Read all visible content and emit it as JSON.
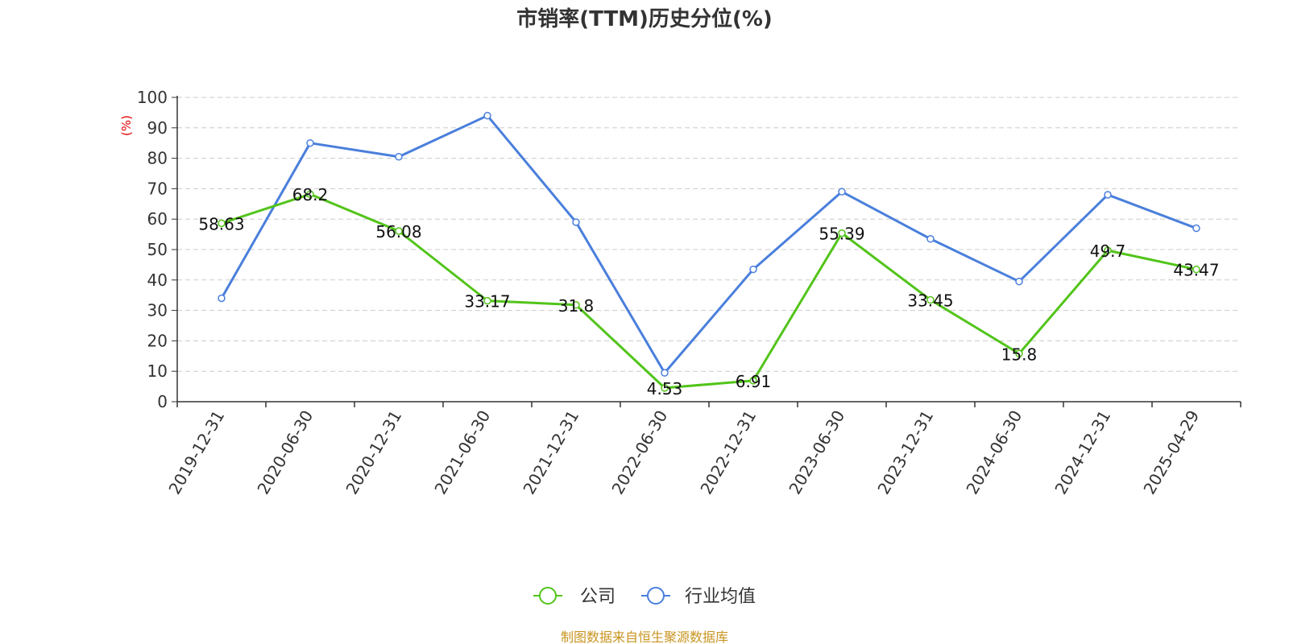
{
  "chart_data": {
    "type": "line",
    "title": "市销率(TTM)历史分位(%)",
    "ylabel": "(%)",
    "xlabel": "",
    "ylim": [
      0,
      100
    ],
    "yticks": [
      "0",
      "10",
      "20",
      "30",
      "40",
      "50",
      "60",
      "70",
      "80",
      "90",
      "100"
    ],
    "categories": [
      "2019-12-31",
      "2020-06-30",
      "2020-12-31",
      "2021-06-30",
      "2021-12-31",
      "2022-06-30",
      "2022-12-31",
      "2023-06-30",
      "2023-12-31",
      "2024-06-30",
      "2024-12-31",
      "2025-04-29"
    ],
    "series": [
      {
        "name": "公司",
        "color": "#52c41a",
        "values": [
          58.63,
          68.2,
          56.08,
          33.17,
          31.8,
          4.53,
          6.91,
          55.39,
          33.45,
          15.8,
          49.7,
          43.47
        ],
        "labels": [
          "58.63",
          "68.2",
          "56.08",
          "33.17",
          "31.8",
          "4.53",
          "6.91",
          "55.39",
          "33.45",
          "15.8",
          "49.7",
          "43.47"
        ]
      },
      {
        "name": "行业均值",
        "color": "#4a7fdc",
        "values": [
          34,
          85,
          80.5,
          94,
          59,
          9.5,
          43.5,
          69,
          53.5,
          39.5,
          68,
          57
        ]
      }
    ],
    "grid": true,
    "legend": "bottom-center"
  },
  "footer": {
    "source": "制图数据来自恒生聚源数据库"
  }
}
